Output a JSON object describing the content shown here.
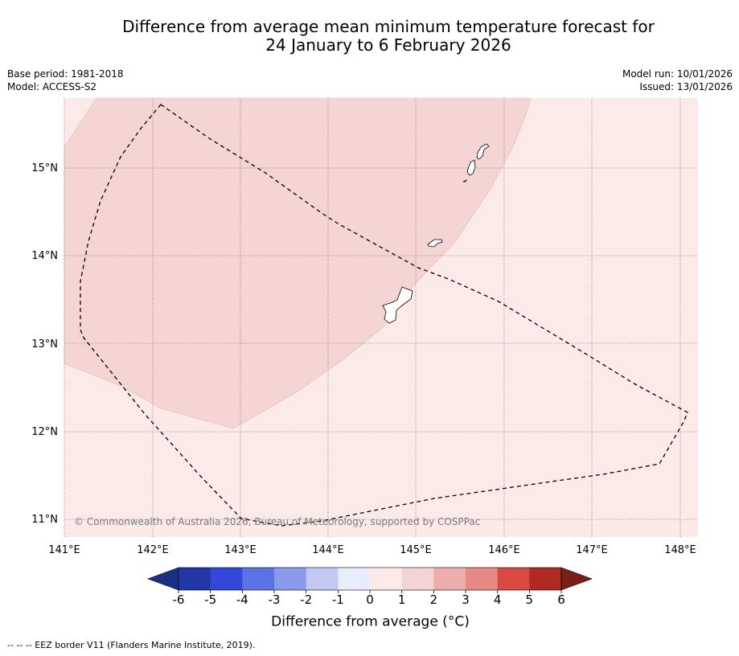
{
  "title": {
    "line1": "Difference from average mean minimum temperature forecast for",
    "line2": "24 January to 6 February 2026"
  },
  "meta_left": {
    "base_period": "Base period: 1981-2018",
    "model": "Model: ACCESS-S2"
  },
  "meta_right": {
    "model_run": "Model run: 10/01/2026",
    "issued": "Issued: 13/01/2026"
  },
  "map": {
    "lon_labels": [
      "141°E",
      "142°E",
      "143°E",
      "144°E",
      "145°E",
      "146°E",
      "147°E",
      "148°E"
    ],
    "lat_labels": [
      "15°N",
      "14°N",
      "13°N",
      "12°N",
      "11°N"
    ],
    "copyright": "© Commonwealth of Australia 2026, Bureau of Meteorology, supported by COSPPac",
    "regions": [
      {
        "name": "0 to 1 °C",
        "color": "#fbeae8"
      },
      {
        "name": "1 to 2 °C",
        "color": "#f5d5d3"
      }
    ]
  },
  "colorbar": {
    "ticks": [
      "-6",
      "-5",
      "-4",
      "-3",
      "-2",
      "-1",
      "0",
      "1",
      "2",
      "3",
      "4",
      "5",
      "6"
    ],
    "colors": [
      "#2236a8",
      "#3148d8",
      "#5a72e3",
      "#8a9aea",
      "#c2c9f2",
      "#e9ecfb",
      "#fbeae8",
      "#f5d5d3",
      "#edadaa",
      "#e68884",
      "#d94a43",
      "#b02a24"
    ],
    "under_color": "#1d2e85",
    "over_color": "#7a1e19",
    "label": "Difference from average (°C)",
    "label_main": "Difference from average (",
    "label_unit": "°C",
    "label_close": ")"
  },
  "footnote": "--  --  -- EEZ border V11 (Flanders Marine Institute, 2019)."
}
